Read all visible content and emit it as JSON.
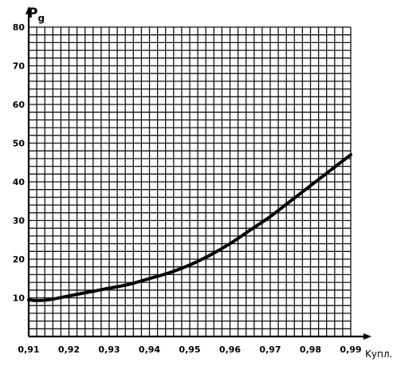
{
  "chart_data": {
    "type": "line",
    "title": "",
    "ylabel": "P",
    "ylabel_subscript": "g",
    "xlabel": "Kупл.",
    "xlim": [
      0.91,
      0.99
    ],
    "ylim": [
      0,
      80
    ],
    "x_ticks": [
      "0,91",
      "0,92",
      "0,93",
      "0,94",
      "0,95",
      "0,96",
      "0,97",
      "0,98",
      "0,99"
    ],
    "y_ticks": [
      "10",
      "20",
      "30",
      "40",
      "50",
      "60",
      "70",
      "80"
    ],
    "grid": true,
    "x_grid_divisions": 40,
    "y_grid_divisions": 40,
    "series": [
      {
        "x": [
          0.91,
          0.912,
          0.915,
          0.92,
          0.925,
          0.93,
          0.935,
          0.94,
          0.945,
          0.95,
          0.955,
          0.96,
          0.965,
          0.97,
          0.975,
          0.98,
          0.985,
          0.99
        ],
        "y": [
          9.5,
          9.3,
          9.5,
          10.5,
          11.5,
          12.5,
          13.5,
          15.0,
          16.5,
          18.5,
          21.0,
          24.0,
          27.5,
          31.0,
          35.0,
          39.0,
          43.0,
          47.0
        ]
      }
    ]
  }
}
